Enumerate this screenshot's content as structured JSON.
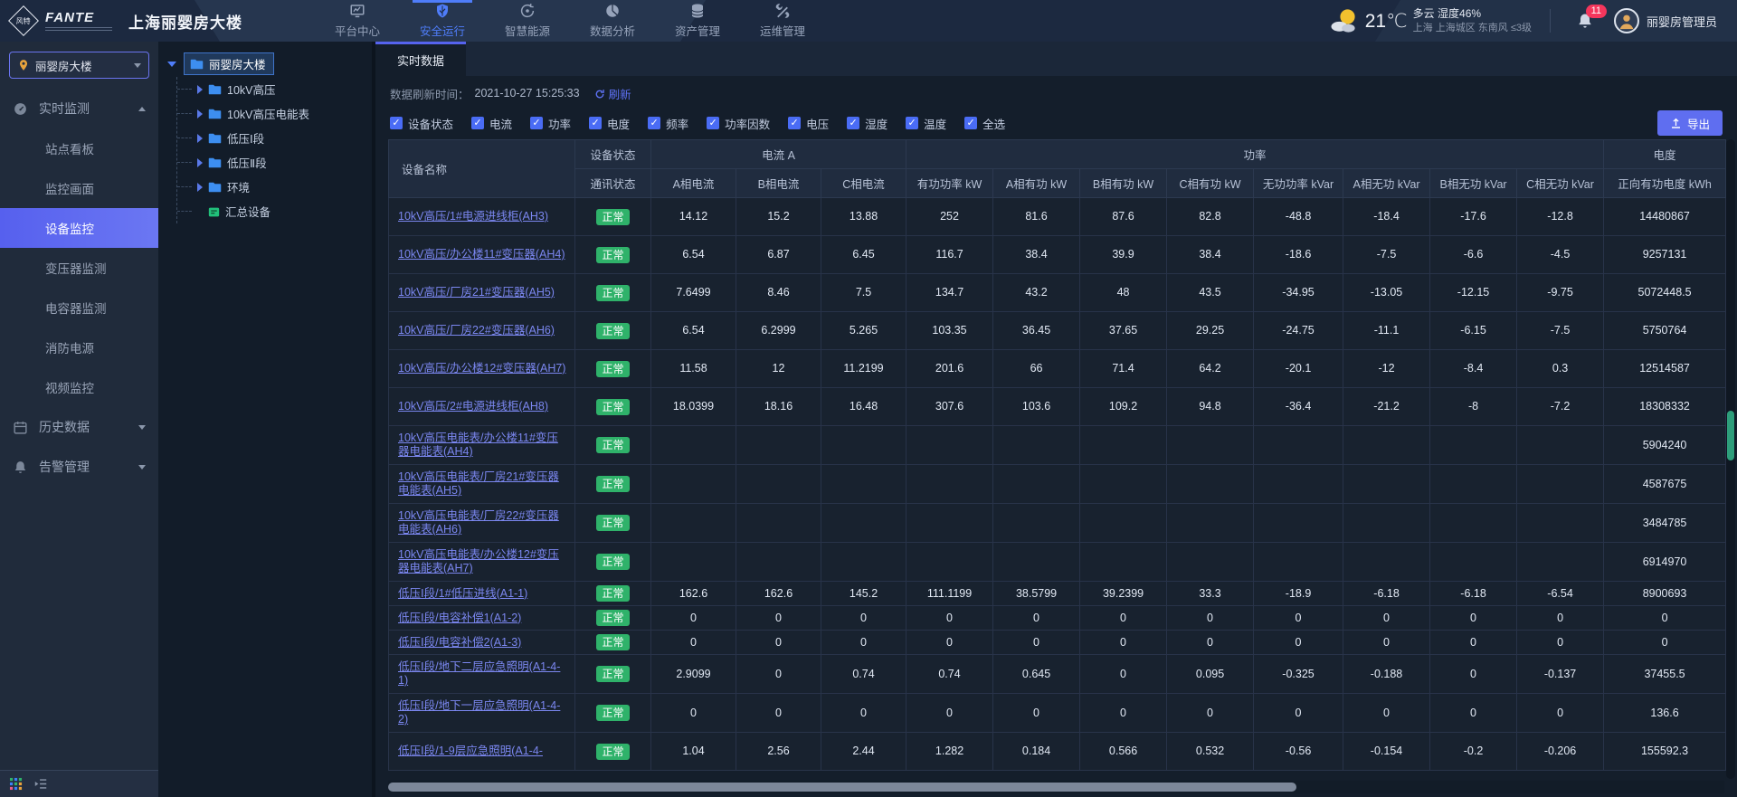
{
  "colors": {
    "accent": "#5663ee",
    "nav_active": "#4f7df9",
    "status_ok": "#2fb26a",
    "notification_badge": "#f5365c",
    "link": "#7b87f0",
    "folder": "#3d8ef0",
    "device_node": "#21c07a"
  },
  "topbar": {
    "brand": {
      "logo_cn": "风特",
      "logo_en": "FANTE",
      "title": "上海丽婴房大楼"
    },
    "nav": [
      {
        "id": "platform-center",
        "icon": "monitor-chart",
        "label": "平台中心",
        "active": false
      },
      {
        "id": "safe-operation",
        "icon": "shield",
        "label": "安全运行",
        "active": true
      },
      {
        "id": "smart-energy",
        "icon": "energy",
        "label": "智慧能源",
        "active": false
      },
      {
        "id": "data-analysis",
        "icon": "pie",
        "label": "数据分析",
        "active": false
      },
      {
        "id": "asset-management",
        "icon": "database",
        "label": "资产管理",
        "active": false
      },
      {
        "id": "ops-management",
        "icon": "tools",
        "label": "运维管理",
        "active": false
      }
    ],
    "weather": {
      "temp": "21℃",
      "condition": "多云",
      "humidity": "湿度46%",
      "location": "上海 上海城区 东南风 ≤3级"
    },
    "notification_count": "11",
    "user": "丽婴房管理员"
  },
  "sidebar": {
    "site_selector": "丽婴房大楼",
    "sections": [
      {
        "label": "实时监测",
        "icon": "gauge",
        "state": "expanded",
        "children": [
          {
            "label": "站点看板",
            "active": false
          },
          {
            "label": "监控画面",
            "active": false
          },
          {
            "label": "设备监控",
            "active": true
          },
          {
            "label": "变压器监测",
            "active": false
          },
          {
            "label": "电容器监测",
            "active": false
          },
          {
            "label": "消防电源",
            "active": false
          },
          {
            "label": "视频监控",
            "active": false
          }
        ]
      },
      {
        "label": "历史数据",
        "icon": "calendar",
        "state": "collapsed",
        "children": []
      },
      {
        "label": "告警管理",
        "icon": "alarm-bell",
        "state": "collapsed",
        "children": []
      }
    ]
  },
  "tree": {
    "root": {
      "label": "丽婴房大楼",
      "expanded": true,
      "selected": true
    },
    "children": [
      {
        "label": "10kV高压",
        "icon": "folder",
        "expandable": true
      },
      {
        "label": "10kV高压电能表",
        "icon": "folder",
        "expandable": true
      },
      {
        "label": "低压Ⅰ段",
        "icon": "folder",
        "expandable": true
      },
      {
        "label": "低压Ⅱ段",
        "icon": "folder",
        "expandable": true
      },
      {
        "label": "环境",
        "icon": "folder",
        "expandable": true
      },
      {
        "label": "汇总设备",
        "icon": "device",
        "expandable": false
      }
    ]
  },
  "main": {
    "tab": "实时数据",
    "refresh": {
      "label": "数据刷新时间：",
      "time": "2021-10-27 15:25:33",
      "action": "刷新"
    },
    "filters": [
      {
        "label": "设备状态",
        "checked": true
      },
      {
        "label": "电流",
        "checked": true
      },
      {
        "label": "功率",
        "checked": true
      },
      {
        "label": "电度",
        "checked": true
      },
      {
        "label": "频率",
        "checked": true
      },
      {
        "label": "功率因数",
        "checked": true
      },
      {
        "label": "电压",
        "checked": true
      },
      {
        "label": "湿度",
        "checked": true
      },
      {
        "label": "温度",
        "checked": true
      },
      {
        "label": "全选",
        "checked": true
      }
    ],
    "export_label": "导出"
  },
  "table": {
    "name_header": "设备名称",
    "groups": [
      {
        "label": "设备状态",
        "children": [
          "通讯状态"
        ]
      },
      {
        "label": "电流 A",
        "children": [
          "A相电流",
          "B相电流",
          "C相电流"
        ]
      },
      {
        "label": "功率",
        "children": [
          "有功功率 kW",
          "A相有功 kW",
          "B相有功 kW",
          "C相有功 kW",
          "无功功率 kVar",
          "A相无功 kVar",
          "B相无功 kVar",
          "C相无功 kVar"
        ]
      },
      {
        "label": "电度",
        "children": [
          "正向有功电度 kWh"
        ]
      }
    ],
    "rows": [
      {
        "name": "10kV高压/1#电源进线柜(AH3)",
        "status": "正常",
        "values": [
          "14.12",
          "15.2",
          "13.88",
          "252",
          "81.6",
          "87.6",
          "82.8",
          "-48.8",
          "-18.4",
          "-17.6",
          "-12.8",
          "14480867"
        ]
      },
      {
        "name": "10kV高压/办公楼11#变压器(AH4)",
        "status": "正常",
        "values": [
          "6.54",
          "6.87",
          "6.45",
          "116.7",
          "38.4",
          "39.9",
          "38.4",
          "-18.6",
          "-7.5",
          "-6.6",
          "-4.5",
          "9257131"
        ]
      },
      {
        "name": "10kV高压/厂房21#变压器(AH5)",
        "status": "正常",
        "values": [
          "7.6499",
          "8.46",
          "7.5",
          "134.7",
          "43.2",
          "48",
          "43.5",
          "-34.95",
          "-13.05",
          "-12.15",
          "-9.75",
          "5072448.5"
        ]
      },
      {
        "name": "10kV高压/厂房22#变压器(AH6)",
        "status": "正常",
        "values": [
          "6.54",
          "6.2999",
          "5.265",
          "103.35",
          "36.45",
          "37.65",
          "29.25",
          "-24.75",
          "-11.1",
          "-6.15",
          "-7.5",
          "5750764"
        ]
      },
      {
        "name": "10kV高压/办公楼12#变压器(AH7)",
        "status": "正常",
        "values": [
          "11.58",
          "12",
          "11.2199",
          "201.6",
          "66",
          "71.4",
          "64.2",
          "-20.1",
          "-12",
          "-8.4",
          "0.3",
          "12514587"
        ]
      },
      {
        "name": "10kV高压/2#电源进线柜(AH8)",
        "status": "正常",
        "values": [
          "18.0399",
          "18.16",
          "16.48",
          "307.6",
          "103.6",
          "109.2",
          "94.8",
          "-36.4",
          "-21.2",
          "-8",
          "-7.2",
          "18308332"
        ]
      },
      {
        "name": "10kV高压电能表/办公楼11#变压器电能表(AH4)",
        "status": "正常",
        "values": [
          "",
          "",
          "",
          "",
          "",
          "",
          "",
          "",
          "",
          "",
          "",
          "5904240"
        ]
      },
      {
        "name": "10kV高压电能表/厂房21#变压器电能表(AH5)",
        "status": "正常",
        "values": [
          "",
          "",
          "",
          "",
          "",
          "",
          "",
          "",
          "",
          "",
          "",
          "4587675"
        ]
      },
      {
        "name": "10kV高压电能表/厂房22#变压器电能表(AH6)",
        "status": "正常",
        "values": [
          "",
          "",
          "",
          "",
          "",
          "",
          "",
          "",
          "",
          "",
          "",
          "3484785"
        ]
      },
      {
        "name": "10kV高压电能表/办公楼12#变压器电能表(AH7)",
        "status": "正常",
        "values": [
          "",
          "",
          "",
          "",
          "",
          "",
          "",
          "",
          "",
          "",
          "",
          "6914970"
        ]
      },
      {
        "name": "低压Ⅰ段/1#低压进线(A1-1)",
        "status": "正常",
        "values": [
          "162.6",
          "162.6",
          "145.2",
          "111.1199",
          "38.5799",
          "39.2399",
          "33.3",
          "-18.9",
          "-6.18",
          "-6.18",
          "-6.54",
          "8900693"
        ]
      },
      {
        "name": "低压Ⅰ段/电容补偿1(A1-2)",
        "status": "正常",
        "values": [
          "0",
          "0",
          "0",
          "0",
          "0",
          "0",
          "0",
          "0",
          "0",
          "0",
          "0",
          "0"
        ]
      },
      {
        "name": "低压Ⅰ段/电容补偿2(A1-3)",
        "status": "正常",
        "values": [
          "0",
          "0",
          "0",
          "0",
          "0",
          "0",
          "0",
          "0",
          "0",
          "0",
          "0",
          "0"
        ]
      },
      {
        "name": "低压Ⅰ段/地下二层应急照明(A1-4-1)",
        "status": "正常",
        "values": [
          "2.9099",
          "0",
          "0.74",
          "0.74",
          "0.645",
          "0",
          "0.095",
          "-0.325",
          "-0.188",
          "0",
          "-0.137",
          "37455.5"
        ]
      },
      {
        "name": "低压Ⅰ段/地下一层应急照明(A1-4-2)",
        "status": "正常",
        "values": [
          "0",
          "0",
          "0",
          "0",
          "0",
          "0",
          "0",
          "0",
          "0",
          "0",
          "0",
          "136.6"
        ]
      },
      {
        "name": "低压Ⅰ段/1-9层应急照明(A1-4-",
        "status": "正常",
        "values": [
          "1.04",
          "2.56",
          "2.44",
          "1.282",
          "0.184",
          "0.566",
          "0.532",
          "-0.56",
          "-0.154",
          "-0.2",
          "-0.206",
          "155592.3"
        ]
      }
    ]
  }
}
